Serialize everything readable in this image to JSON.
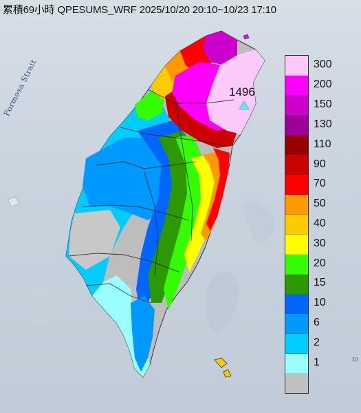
{
  "title": "累積69小時 QPESUMS_WRF 2025/10/20 20:10~10/23 17:10",
  "sea_label": "Formosa Strait",
  "peak": {
    "value": "1496",
    "marker_color": "#55e8ff"
  },
  "legend": [
    {
      "label": "300",
      "color": "#fdc9f8"
    },
    {
      "label": "200",
      "color": "#fd00fb"
    },
    {
      "label": "150",
      "color": "#cc00cc"
    },
    {
      "label": "130",
      "color": "#9c0099"
    },
    {
      "label": "110",
      "color": "#9a0000"
    },
    {
      "label": "90",
      "color": "#cc0000"
    },
    {
      "label": "70",
      "color": "#fd0000"
    },
    {
      "label": "50",
      "color": "#fe9900"
    },
    {
      "label": "40",
      "color": "#fdcc00"
    },
    {
      "label": "30",
      "color": "#fefe00"
    },
    {
      "label": "20",
      "color": "#33fd00"
    },
    {
      "label": "15",
      "color": "#2c9900"
    },
    {
      "label": "10",
      "color": "#0166ff"
    },
    {
      "label": "6",
      "color": "#0099ff"
    },
    {
      "label": "2",
      "color": "#00ccfe"
    },
    {
      "label": "1",
      "color": "#9bfefe"
    },
    {
      "label": "",
      "color": "#c0c0c0"
    }
  ],
  "corner_text": "10"
}
